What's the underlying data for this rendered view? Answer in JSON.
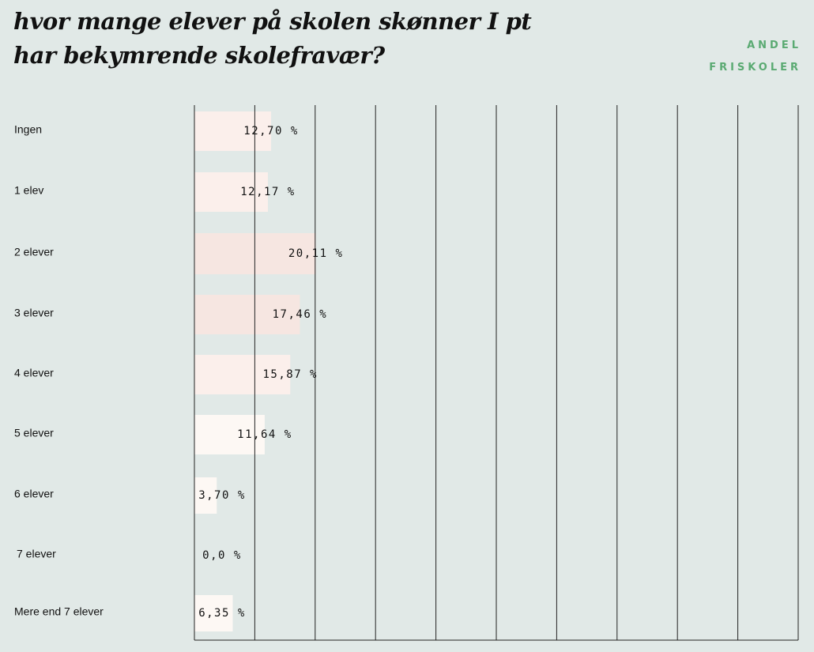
{
  "title_lines": [
    "hvor mange elever på skolen skønner I pt",
    "har bekymrende skolefravær?"
  ],
  "legend": {
    "line1": "ANDEL",
    "line2": "FRISKOLER",
    "color": "#5aaa72"
  },
  "colors": {
    "background": "#e1e9e7",
    "gridline": "#222222",
    "bar_light": "#fdf8f4",
    "bar_mid": "#fbefeb",
    "bar_dark": "#f6e6e1"
  },
  "chart_data": {
    "type": "bar",
    "orientation": "horizontal",
    "categories": [
      "Ingen",
      "1 elev",
      "2 elever",
      "3 elever",
      "4 elever",
      "5 elever",
      "6 elever",
      "7 elever",
      "Mere end 7 elever"
    ],
    "values": [
      12.7,
      12.17,
      20.11,
      17.46,
      15.87,
      11.64,
      3.7,
      0.0,
      6.35
    ],
    "value_labels": [
      "12,70 %",
      "12,17 %",
      "20,11 %",
      "17,46 %",
      "15,87 %",
      "11,64 %",
      "3,70 %",
      "0,0 %",
      "6,35 %"
    ],
    "xlim": [
      0,
      100
    ],
    "grid": true,
    "series": [
      {
        "name": "ANDEL FRISKOLER"
      }
    ]
  }
}
